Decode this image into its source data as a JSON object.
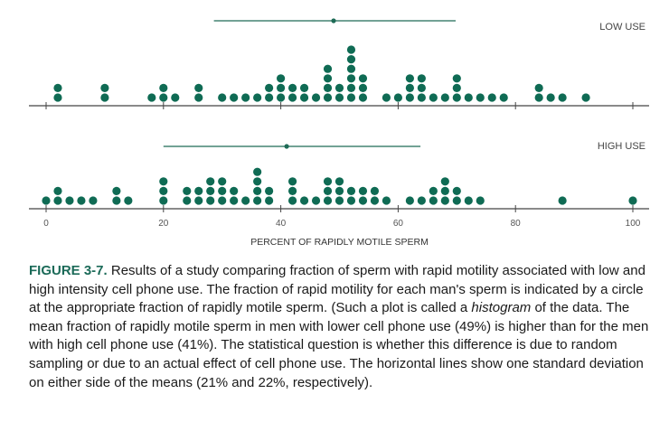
{
  "chart_data": {
    "type": "dot histogram",
    "xlabel": "PERCENT OF RAPIDLY MOTILE SPERM",
    "xlim": [
      0,
      100
    ],
    "xticks": [
      0,
      20,
      40,
      60,
      80,
      100
    ],
    "colors": {
      "dot": "#0f6b54",
      "line": "#1e6b56",
      "axis": "#444444"
    },
    "groups": [
      {
        "name": "LOW USE",
        "mean": 49,
        "sd": 21,
        "sd_range": [
          28.6,
          69.8
        ],
        "stacks": [
          [
            2,
            2
          ],
          [
            10,
            2
          ],
          [
            18,
            1
          ],
          [
            20,
            2
          ],
          [
            22,
            1
          ],
          [
            26,
            2
          ],
          [
            30,
            1
          ],
          [
            32,
            1
          ],
          [
            34,
            1
          ],
          [
            36,
            1
          ],
          [
            38,
            2
          ],
          [
            40,
            3
          ],
          [
            42,
            2
          ],
          [
            44,
            2
          ],
          [
            46,
            1
          ],
          [
            48,
            4
          ],
          [
            50,
            2
          ],
          [
            52,
            6
          ],
          [
            54,
            3
          ],
          [
            58,
            1
          ],
          [
            60,
            1
          ],
          [
            62,
            3
          ],
          [
            64,
            3
          ],
          [
            66,
            1
          ],
          [
            68,
            1
          ],
          [
            70,
            3
          ],
          [
            72,
            1
          ],
          [
            74,
            1
          ],
          [
            76,
            1
          ],
          [
            78,
            1
          ],
          [
            84,
            2
          ],
          [
            86,
            1
          ],
          [
            88,
            1
          ],
          [
            92,
            1
          ]
        ]
      },
      {
        "name": "HIGH USE",
        "mean": 41,
        "sd": 22,
        "sd_range": [
          20.0,
          63.8
        ],
        "stacks": [
          [
            0,
            1
          ],
          [
            2,
            2
          ],
          [
            4,
            1
          ],
          [
            6,
            1
          ],
          [
            8,
            1
          ],
          [
            12,
            2
          ],
          [
            14,
            1
          ],
          [
            20,
            3
          ],
          [
            24,
            2
          ],
          [
            26,
            2
          ],
          [
            28,
            3
          ],
          [
            30,
            3
          ],
          [
            32,
            2
          ],
          [
            34,
            1
          ],
          [
            36,
            4
          ],
          [
            38,
            2
          ],
          [
            42,
            3
          ],
          [
            44,
            1
          ],
          [
            46,
            1
          ],
          [
            48,
            3
          ],
          [
            50,
            3
          ],
          [
            52,
            2
          ],
          [
            54,
            2
          ],
          [
            56,
            2
          ],
          [
            58,
            1
          ],
          [
            62,
            1
          ],
          [
            64,
            1
          ],
          [
            66,
            2
          ],
          [
            68,
            3
          ],
          [
            70,
            2
          ],
          [
            72,
            1
          ],
          [
            74,
            1
          ],
          [
            88,
            1
          ],
          [
            100,
            1
          ]
        ]
      }
    ]
  },
  "caption": {
    "label": "FIGURE 3-7.",
    "text_before": " Results of a study comparing fraction of sperm with rapid motility associated with low and high intensity cell phone use. The fraction of rapid motility for each man's sperm is indicated by a circle at the appropriate fraction of rapidly motile sperm. (Such a plot is called a ",
    "italic": "histogram",
    "text_after": " of the data. The mean fraction of rapidly motile sperm in men with lower cell phone use (49%) is higher than for the men with high cell phone use (41%). The statistical question is whether this difference is due to random sampling or due to an actual effect of cell phone use. The horizontal lines show one standard deviation on either side of the means (21% and 22%, respectively)."
  }
}
